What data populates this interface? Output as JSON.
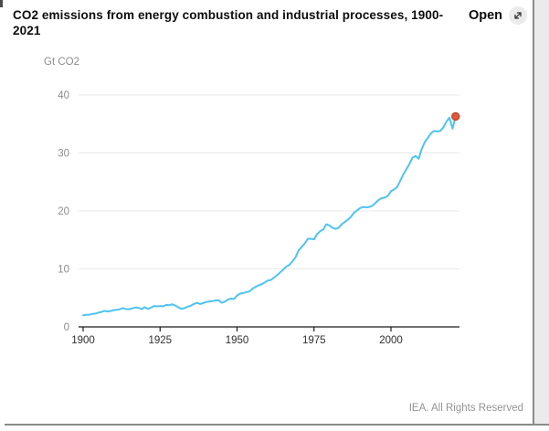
{
  "header": {
    "title": "CO2 emissions from energy combustion and industrial processes, 1900-2021",
    "open_label": "Open"
  },
  "icons": {
    "expand": "⤢"
  },
  "footer": {
    "credit": "IEA. All Rights Reserved"
  },
  "colors": {
    "line": "#4ec3f0",
    "marker_fill": "#e0593a",
    "marker_stroke": "#bf4e2f",
    "grid": "#e9e9e9",
    "axis": "#1a1a1a",
    "muted_text": "#8c8c8c",
    "x_label_text": "#2e2e2e"
  },
  "chart_data": {
    "type": "line",
    "title": "CO2 emissions from energy combustion and industrial processes, 1900-2021",
    "xlabel": "",
    "ylabel": "Gt CO2",
    "xlim": [
      1900,
      2021
    ],
    "ylim": [
      0,
      40
    ],
    "x_ticks": [
      1900,
      1925,
      1950,
      1975,
      2000
    ],
    "y_ticks": [
      0,
      10,
      20,
      30,
      40
    ],
    "grid": "horizontal",
    "legend": "none",
    "series": [
      {
        "name": "CO2 emissions",
        "x": [
          1900,
          1901,
          1902,
          1903,
          1904,
          1905,
          1906,
          1907,
          1908,
          1909,
          1910,
          1911,
          1912,
          1913,
          1914,
          1915,
          1916,
          1917,
          1918,
          1919,
          1920,
          1921,
          1922,
          1923,
          1924,
          1925,
          1926,
          1927,
          1928,
          1929,
          1930,
          1931,
          1932,
          1933,
          1934,
          1935,
          1936,
          1937,
          1938,
          1939,
          1940,
          1941,
          1942,
          1943,
          1944,
          1945,
          1946,
          1947,
          1948,
          1949,
          1950,
          1951,
          1952,
          1953,
          1954,
          1955,
          1956,
          1957,
          1958,
          1959,
          1960,
          1961,
          1962,
          1963,
          1964,
          1965,
          1966,
          1967,
          1968,
          1969,
          1970,
          1971,
          1972,
          1973,
          1974,
          1975,
          1976,
          1977,
          1978,
          1979,
          1980,
          1981,
          1982,
          1983,
          1984,
          1985,
          1986,
          1987,
          1988,
          1989,
          1990,
          1991,
          1992,
          1993,
          1994,
          1995,
          1996,
          1997,
          1998,
          1999,
          2000,
          2001,
          2002,
          2003,
          2004,
          2005,
          2006,
          2007,
          2008,
          2009,
          2010,
          2011,
          2012,
          2013,
          2014,
          2015,
          2016,
          2017,
          2018,
          2019,
          2020,
          2021
        ],
        "values": [
          2.0,
          2.1,
          2.1,
          2.25,
          2.3,
          2.45,
          2.6,
          2.75,
          2.65,
          2.75,
          2.9,
          2.95,
          3.05,
          3.25,
          3.05,
          3.05,
          3.2,
          3.35,
          3.3,
          3.05,
          3.4,
          3.1,
          3.3,
          3.6,
          3.55,
          3.6,
          3.55,
          3.8,
          3.75,
          3.9,
          3.65,
          3.35,
          3.1,
          3.25,
          3.5,
          3.65,
          3.95,
          4.15,
          3.95,
          4.1,
          4.3,
          4.4,
          4.45,
          4.55,
          4.6,
          4.15,
          4.35,
          4.7,
          4.9,
          4.8,
          5.4,
          5.75,
          5.85,
          6.0,
          6.1,
          6.6,
          6.9,
          7.15,
          7.35,
          7.65,
          8.0,
          8.1,
          8.5,
          8.9,
          9.4,
          9.9,
          10.4,
          10.7,
          11.3,
          12.0,
          13.2,
          13.8,
          14.4,
          15.2,
          15.2,
          15.1,
          16.0,
          16.5,
          16.8,
          17.7,
          17.5,
          17.1,
          16.9,
          17.1,
          17.7,
          18.1,
          18.5,
          19.0,
          19.7,
          20.1,
          20.5,
          20.7,
          20.6,
          20.7,
          20.9,
          21.4,
          21.9,
          22.2,
          22.3,
          22.6,
          23.4,
          23.7,
          24.1,
          25.2,
          26.3,
          27.2,
          28.1,
          29.2,
          29.5,
          29.0,
          30.7,
          31.9,
          32.6,
          33.4,
          33.8,
          33.7,
          33.8,
          34.4,
          35.4,
          36.1,
          34.2,
          36.3
        ]
      }
    ],
    "end_marker": {
      "x": 2021,
      "value": 36.3
    }
  }
}
